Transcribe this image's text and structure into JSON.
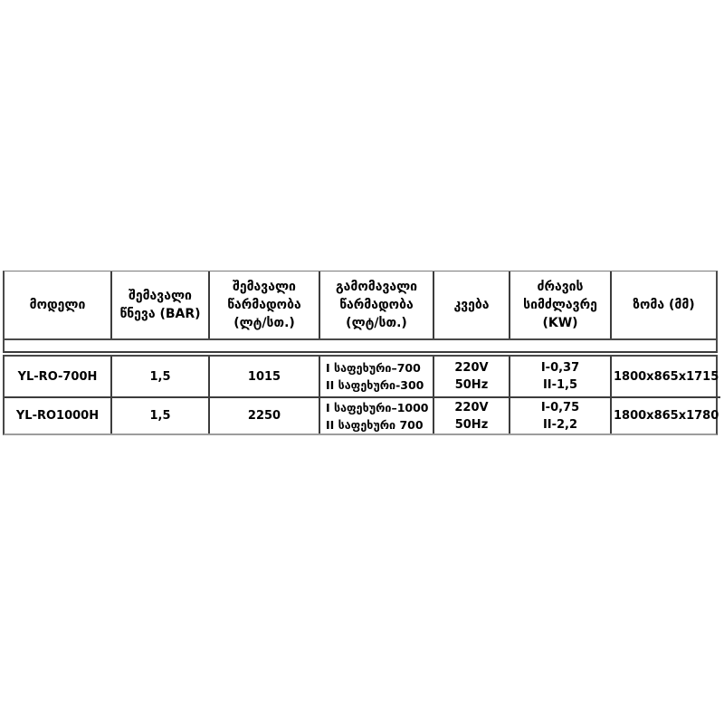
{
  "page": {
    "background": "#ffffff",
    "text_color": "#000000",
    "border_color": "#3c3c3c",
    "outer_border_color": "#7b7b7b"
  },
  "table": {
    "columns": [
      {
        "id": "model",
        "lines": [
          "მოდელი"
        ]
      },
      {
        "id": "inlet-pressure",
        "lines": [
          "შემავალი",
          "წნევა (BAR)"
        ]
      },
      {
        "id": "inlet-capacity",
        "lines": [
          "შემავალი",
          "წარმადობა",
          "(ლტ/სთ.)"
        ]
      },
      {
        "id": "outlet-capacity",
        "lines": [
          "გამომავალი",
          "წარმადობა",
          "(ლტ/სთ.)"
        ]
      },
      {
        "id": "power-supply",
        "lines": [
          "კვება"
        ]
      },
      {
        "id": "motor-power",
        "lines": [
          "ძრავის",
          "სიმძლავრე",
          "(KW)"
        ]
      },
      {
        "id": "size",
        "lines": [
          "ზომა (მმ)"
        ]
      }
    ],
    "rows": [
      {
        "model": "YL-RO-700H",
        "inlet_pressure": "1,5",
        "inlet_capacity": "1015",
        "outlet_capacity": [
          "I საფეხური–700",
          "II საფეხური-300"
        ],
        "power_supply": "220V 50Hz",
        "motor_power": [
          "I-0,37",
          "II-1,5"
        ],
        "size": "1800x865x1715"
      },
      {
        "model": "YL-RO1000H",
        "inlet_pressure": "1,5",
        "inlet_capacity": "2250",
        "outlet_capacity": [
          "I საფეხური–1000",
          "II საფეხური 700"
        ],
        "power_supply": "220V 50Hz",
        "motor_power": [
          "I-0,75",
          "II-2,2"
        ],
        "size": "1800x865x1780"
      }
    ]
  }
}
